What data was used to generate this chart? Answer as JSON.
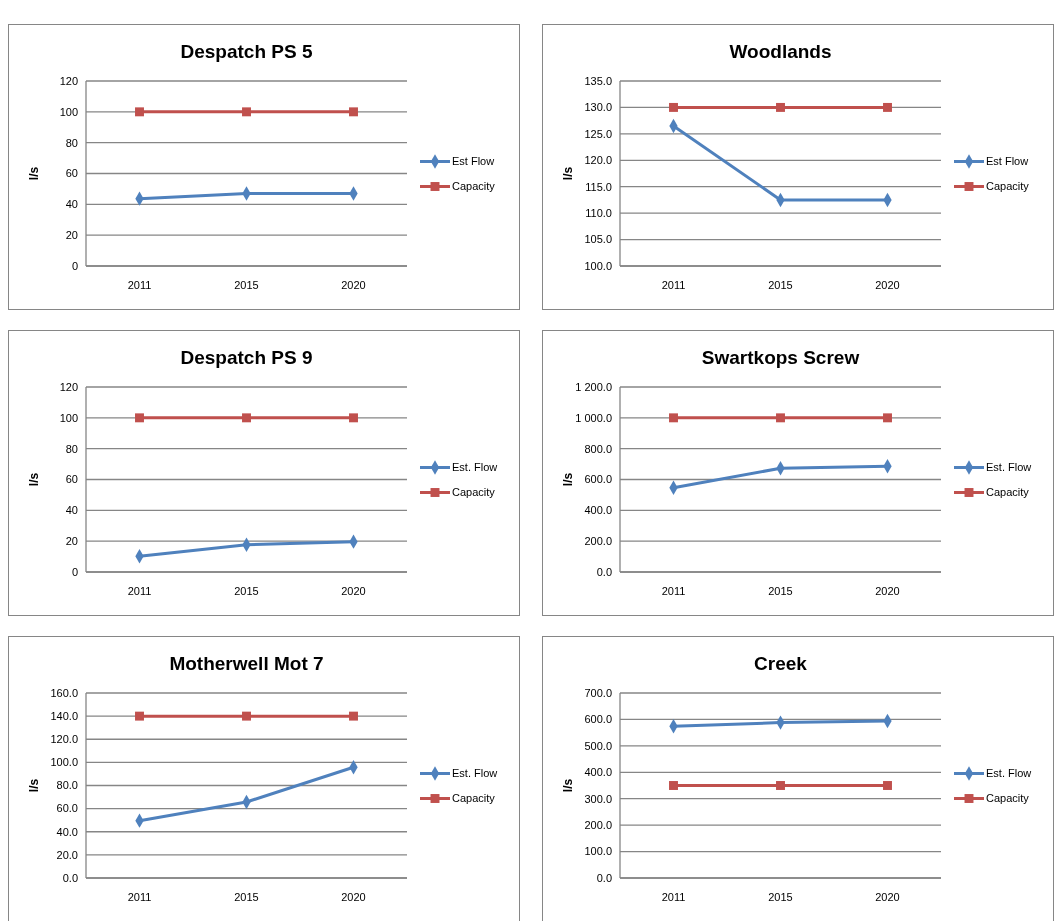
{
  "chart_data": [
    {
      "type": "line",
      "title": "Despatch PS 5",
      "ylabel": "l/s",
      "categories": [
        "2011",
        "2015",
        "2020"
      ],
      "ylim": [
        0,
        120
      ],
      "yticks": [
        0,
        20,
        40,
        60,
        80,
        100,
        120
      ],
      "grid": "y",
      "legend": "right",
      "line_style": "solid",
      "series": [
        {
          "name": "Est Flow",
          "color": "#4f81bd",
          "marker": "diamond",
          "values": [
            43.7,
            47,
            47
          ]
        },
        {
          "name": "Capacity",
          "color": "#c0504d",
          "marker": "square",
          "values": [
            100,
            100,
            100
          ]
        }
      ]
    },
    {
      "type": "line",
      "title": "Woodlands",
      "ylabel": "l/s",
      "categories": [
        "2011",
        "2015",
        "2020"
      ],
      "ylim": [
        100,
        135
      ],
      "yticks": [
        {
          "value": 100,
          "label": "100.0"
        },
        {
          "value": 105,
          "label": "105.0"
        },
        {
          "value": 110,
          "label": "110.0"
        },
        {
          "value": 115,
          "label": "115.0"
        },
        {
          "value": 120,
          "label": "120.0"
        },
        {
          "value": 125,
          "label": "125.0"
        },
        {
          "value": 130,
          "label": "130.0"
        },
        {
          "value": 135,
          "label": "135.0"
        }
      ],
      "grid": "y",
      "legend": "right",
      "line_style": "solid",
      "series": [
        {
          "name": "Est Flow",
          "color": "#4f81bd",
          "marker": "diamond",
          "values": [
            126.5,
            112.5,
            112.5
          ]
        },
        {
          "name": "Capacity",
          "color": "#c0504d",
          "marker": "square",
          "values": [
            130,
            130,
            130
          ]
        }
      ]
    },
    {
      "type": "line",
      "title": "Despatch PS 9",
      "ylabel": "l/s",
      "categories": [
        "2011",
        "2015",
        "2020"
      ],
      "ylim": [
        0,
        120
      ],
      "yticks": [
        0,
        20,
        40,
        60,
        80,
        100,
        120
      ],
      "grid": "y",
      "legend": "right",
      "line_style": "solid",
      "series": [
        {
          "name": "Est. Flow",
          "color": "#4f81bd",
          "marker": "diamond",
          "values": [
            10.2,
            17.7,
            19.7
          ]
        },
        {
          "name": "Capacity",
          "color": "#c0504d",
          "marker": "square",
          "values": [
            100,
            100,
            100
          ]
        }
      ]
    },
    {
      "type": "line",
      "title": "Swartkops Screw",
      "ylabel": "l/s",
      "categories": [
        "2011",
        "2015",
        "2020"
      ],
      "ylim": [
        0,
        1200
      ],
      "yticks": [
        {
          "value": 0,
          "label": "0.0"
        },
        {
          "value": 200,
          "label": "200.0"
        },
        {
          "value": 400,
          "label": "400.0"
        },
        {
          "value": 600,
          "label": "600.0"
        },
        {
          "value": 800,
          "label": "800.0"
        },
        {
          "value": 1000,
          "label": "1 000.0"
        },
        {
          "value": 1200,
          "label": "1 200.0"
        }
      ],
      "grid": "y",
      "legend": "right",
      "line_style": "solid",
      "series": [
        {
          "name": "Est. Flow",
          "color": "#4f81bd",
          "marker": "diamond",
          "values": [
            546,
            673,
            686
          ]
        },
        {
          "name": "Capacity",
          "color": "#c0504d",
          "marker": "square",
          "values": [
            1000,
            1000,
            1000
          ]
        }
      ]
    },
    {
      "type": "line",
      "title": "Motherwell Mot 7",
      "ylabel": "l/s",
      "categories": [
        "2011",
        "2015",
        "2020"
      ],
      "ylim": [
        0,
        160
      ],
      "yticks": [
        {
          "value": 0,
          "label": "0.0"
        },
        {
          "value": 20,
          "label": "20.0"
        },
        {
          "value": 40,
          "label": "40.0"
        },
        {
          "value": 60,
          "label": "60.0"
        },
        {
          "value": 80,
          "label": "80.0"
        },
        {
          "value": 100,
          "label": "100.0"
        },
        {
          "value": 120,
          "label": "120.0"
        },
        {
          "value": 140,
          "label": "140.0"
        },
        {
          "value": 160,
          "label": "160.0"
        }
      ],
      "grid": "y",
      "legend": "right",
      "line_style": "solid",
      "series": [
        {
          "name": "Est. Flow",
          "color": "#4f81bd",
          "marker": "diamond",
          "values": [
            49.6,
            65.7,
            95.8
          ]
        },
        {
          "name": "Capacity",
          "color": "#c0504d",
          "marker": "square",
          "values": [
            140,
            140,
            140
          ]
        }
      ]
    },
    {
      "type": "line",
      "title": "Creek",
      "ylabel": "l/s",
      "categories": [
        "2011",
        "2015",
        "2020"
      ],
      "ylim": [
        0,
        700
      ],
      "yticks": [
        {
          "value": 0,
          "label": "0.0"
        },
        {
          "value": 100,
          "label": "100.0"
        },
        {
          "value": 200,
          "label": "200.0"
        },
        {
          "value": 300,
          "label": "300.0"
        },
        {
          "value": 400,
          "label": "400.0"
        },
        {
          "value": 500,
          "label": "500.0"
        },
        {
          "value": 600,
          "label": "600.0"
        },
        {
          "value": 700,
          "label": "700.0"
        }
      ],
      "grid": "y",
      "legend": "right",
      "line_style": "solid",
      "series": [
        {
          "name": "Est. Flow",
          "color": "#4f81bd",
          "marker": "diamond",
          "values": [
            574,
            588,
            594
          ]
        },
        {
          "name": "Capacity",
          "color": "#c0504d",
          "marker": "square",
          "values": [
            350,
            350,
            350
          ]
        }
      ]
    }
  ]
}
